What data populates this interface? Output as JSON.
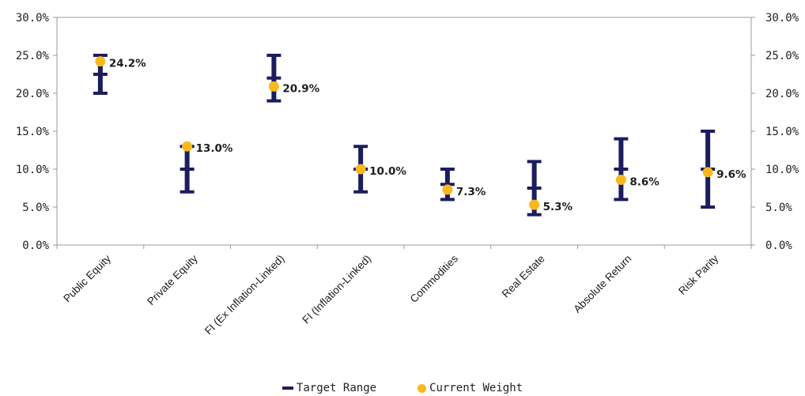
{
  "chart_data": {
    "type": "scatter",
    "title": "",
    "xlabel": "",
    "ylabel": "",
    "ylim": [
      0,
      30
    ],
    "y_ticks": [
      "0.0%",
      "5.0%",
      "10.0%",
      "15.0%",
      "20.0%",
      "25.0%",
      "30.0%"
    ],
    "secondary_y_axis": true,
    "grid": false,
    "legend_position": "bottom",
    "categories": [
      "Public Equity",
      "Private Equity",
      "FI (Ex Inflation-Linked)",
      "FI (Inflation-Linked)",
      "Commodities",
      "Real Estate",
      "Absolute Return",
      "Risk Parity"
    ],
    "series": [
      {
        "name": "Target Range",
        "kind": "range",
        "color": "#1b1d5e",
        "min": [
          20,
          7,
          19,
          7,
          6,
          4,
          6,
          5
        ],
        "max": [
          25,
          13,
          25,
          13,
          10,
          11,
          14,
          15
        ],
        "mid": [
          22.5,
          10,
          22,
          10,
          8,
          7.5,
          10,
          10
        ]
      },
      {
        "name": "Current Weight",
        "kind": "point",
        "color": "#f9b81b",
        "values": [
          24.2,
          13.0,
          20.9,
          10.0,
          7.3,
          5.3,
          8.6,
          9.6
        ],
        "labels": [
          "24.2%",
          "13.0%",
          "20.9%",
          "10.0%",
          "7.3%",
          "5.3%",
          "8.6%",
          "9.6%"
        ]
      }
    ]
  },
  "legend": {
    "target_range": "Target Range",
    "current_weight": "Current Weight"
  }
}
